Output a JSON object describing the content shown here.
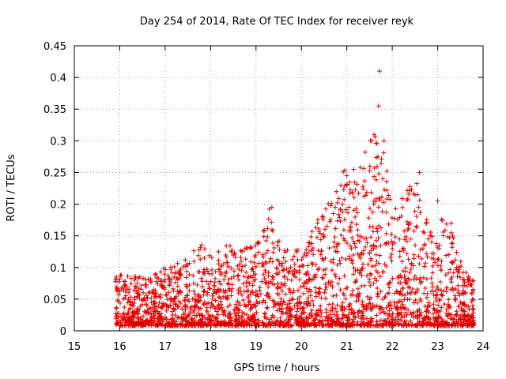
{
  "chart_data": {
    "type": "scatter",
    "title": "Day 254 of 2014, Rate Of TEC Index for receiver reyk",
    "xlabel": "GPS time / hours",
    "ylabel": "ROTI / TECUs",
    "xlim": [
      15,
      24
    ],
    "ylim": [
      0,
      0.45
    ],
    "xticks": [
      "15",
      "16",
      "17",
      "18",
      "19",
      "20",
      "21",
      "22",
      "23",
      "24"
    ],
    "yticks": [
      "0",
      "0.05",
      "0.1",
      "0.15",
      "0.2",
      "0.25",
      "0.3",
      "0.35",
      "0.4",
      "0.45"
    ],
    "grid": true,
    "marker": "+",
    "color": "#e00000",
    "x_range_of_data": [
      15.9,
      23.8
    ],
    "envelope": {
      "x": [
        15.9,
        16.5,
        17.0,
        17.5,
        17.7,
        18.0,
        18.3,
        18.7,
        19.0,
        19.3,
        19.6,
        20.0,
        20.4,
        20.8,
        21.0,
        21.3,
        21.5,
        21.7,
        21.9,
        22.1,
        22.4,
        22.6,
        22.9,
        23.1,
        23.3,
        23.5,
        23.8
      ],
      "y": [
        0.09,
        0.085,
        0.1,
        0.115,
        0.15,
        0.12,
        0.14,
        0.13,
        0.135,
        0.195,
        0.13,
        0.13,
        0.19,
        0.24,
        0.26,
        0.265,
        0.31,
        0.355,
        0.265,
        0.2,
        0.23,
        0.25,
        0.14,
        0.2,
        0.17,
        0.13,
        0.08
      ]
    },
    "highlights": [
      {
        "x": 21.72,
        "y": 0.41
      },
      {
        "x": 21.7,
        "y": 0.355
      },
      {
        "x": 21.6,
        "y": 0.31
      },
      {
        "x": 21.55,
        "y": 0.3
      },
      {
        "x": 22.6,
        "y": 0.25
      },
      {
        "x": 21.0,
        "y": 0.245
      },
      {
        "x": 19.35,
        "y": 0.195
      },
      {
        "x": 23.0,
        "y": 0.205
      }
    ],
    "count": 2600,
    "seed": 254
  }
}
